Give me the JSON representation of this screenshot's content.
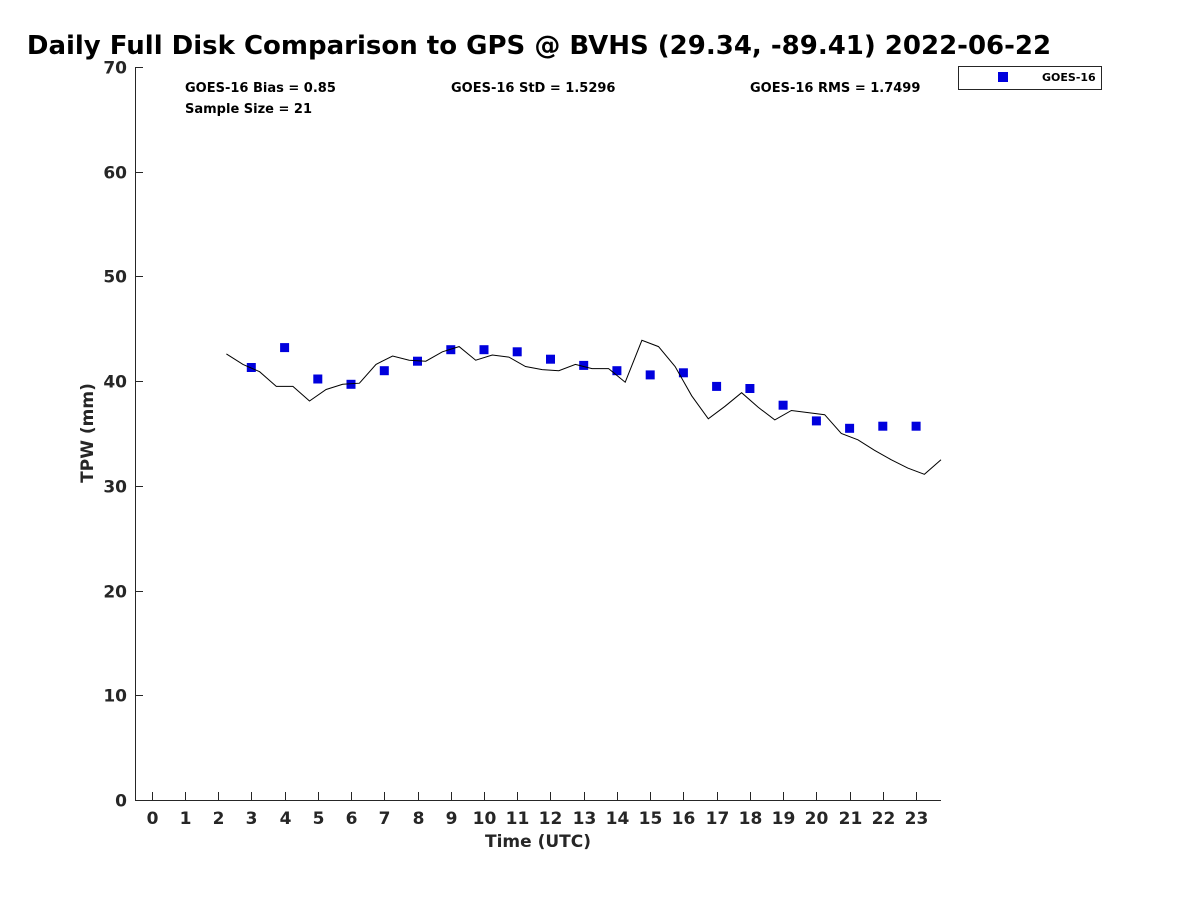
{
  "chart_data": {
    "type": "scatter",
    "title": "Daily Full Disk Comparison to GPS @ BVHS (29.34, -89.41) 2022-06-22",
    "xlabel": "Time (UTC)",
    "ylabel": "TPW (mm)",
    "xlim": [
      -0.5,
      23.75
    ],
    "ylim": [
      0,
      70
    ],
    "x_ticks": [
      0,
      1,
      2,
      3,
      4,
      5,
      6,
      7,
      8,
      9,
      10,
      11,
      12,
      13,
      14,
      15,
      16,
      17,
      18,
      19,
      20,
      21,
      22,
      23
    ],
    "y_ticks": [
      0,
      10,
      20,
      30,
      40,
      50,
      60,
      70
    ],
    "grid": false,
    "legend_position": "top-right",
    "stats": {
      "bias": "GOES-16 Bias = 0.85",
      "std": "GOES-16 StD = 1.5296",
      "rms": "GOES-16 RMS = 1.7499",
      "sample_size": "Sample Size = 21"
    },
    "series": [
      {
        "name": "GOES-16",
        "kind": "scatter",
        "color": "#0000dd",
        "marker": "square",
        "x": [
          3,
          4,
          5,
          6,
          7,
          8,
          9,
          10,
          11,
          12,
          13,
          14,
          15,
          16,
          17,
          18,
          19,
          20,
          21,
          22,
          23
        ],
        "y": [
          41.3,
          43.2,
          40.2,
          39.7,
          41.0,
          41.9,
          43.0,
          43.0,
          42.8,
          42.1,
          41.5,
          41.0,
          40.6,
          40.8,
          39.5,
          39.3,
          37.7,
          36.2,
          35.5,
          35.7,
          35.7
        ]
      },
      {
        "kind": "line",
        "color": "#000000",
        "x": [
          2.25,
          2.75,
          3.25,
          3.75,
          4.25,
          4.75,
          5.25,
          5.75,
          6.25,
          6.75,
          7.25,
          7.75,
          8.25,
          8.75,
          9.25,
          9.75,
          10.25,
          10.75,
          11.25,
          11.75,
          12.25,
          12.75,
          13.25,
          13.75,
          14.25,
          14.75,
          15.25,
          15.75,
          16.25,
          16.75,
          17.25,
          17.75,
          18.25,
          18.75,
          19.25,
          19.75,
          20.25,
          20.75,
          21.25,
          21.75,
          22.25,
          22.75,
          23.25,
          23.75
        ],
        "y": [
          42.6,
          41.6,
          40.9,
          39.5,
          39.5,
          38.1,
          39.2,
          39.7,
          39.8,
          41.6,
          42.4,
          42.0,
          41.9,
          42.8,
          43.3,
          42.0,
          42.5,
          42.3,
          41.4,
          41.1,
          41.0,
          41.6,
          41.2,
          41.2,
          39.9,
          43.9,
          43.3,
          41.4,
          38.6,
          36.4,
          37.6,
          38.9,
          37.5,
          36.3,
          37.2,
          37.0,
          36.8,
          35.0,
          34.4,
          33.4,
          32.5,
          31.7,
          31.1,
          32.5
        ]
      }
    ]
  }
}
